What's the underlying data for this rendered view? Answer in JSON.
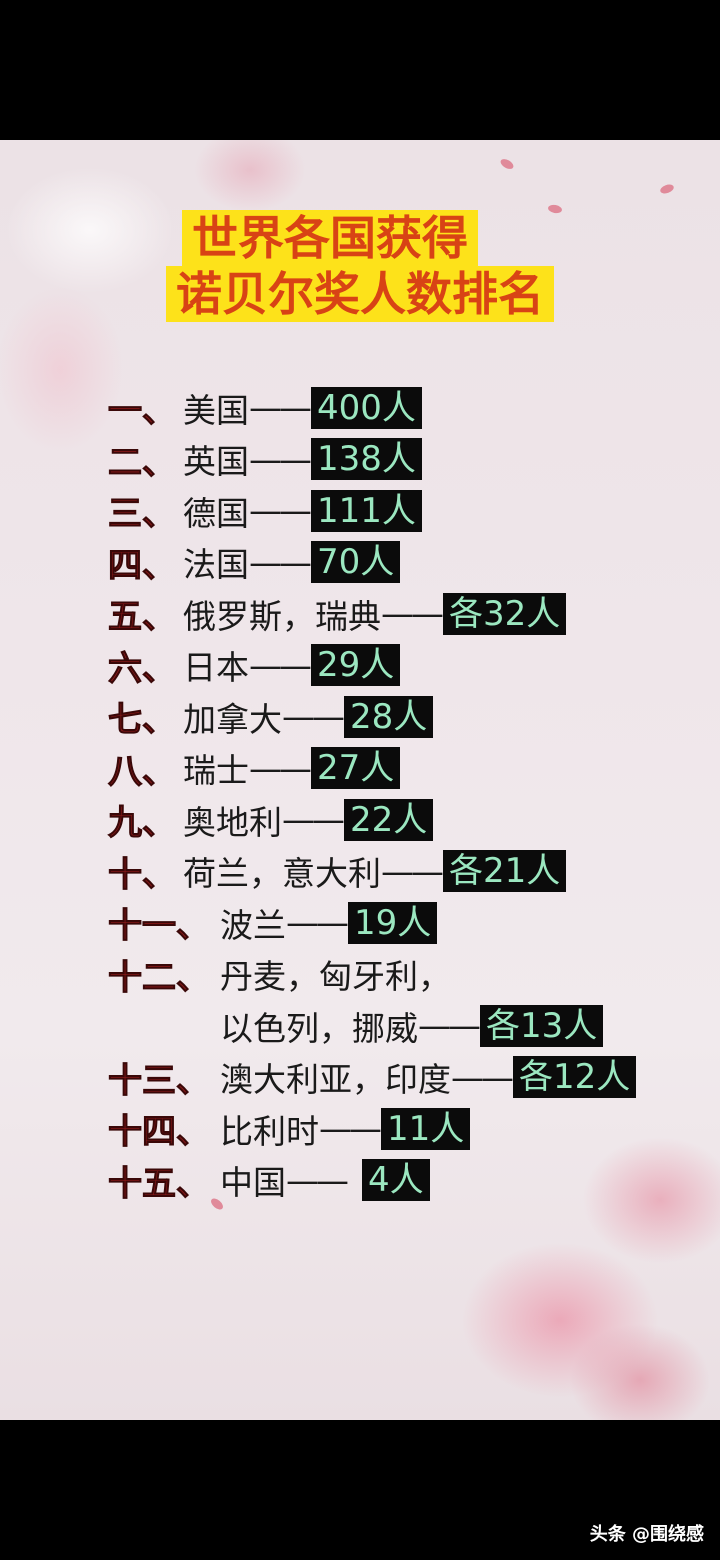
{
  "title": {
    "line1": "世界各国获得",
    "line2": "诺贝尔奖人数排名"
  },
  "ranking": [
    {
      "rank": "一、",
      "country": "美国",
      "dash": "——",
      "value": "400人"
    },
    {
      "rank": "二、",
      "country": "英国",
      "dash": "——",
      "value": "138人"
    },
    {
      "rank": "三、",
      "country": "德国",
      "dash": "——",
      "value": "111人"
    },
    {
      "rank": "四、",
      "country": "法国",
      "dash": "——",
      "value": "70人"
    },
    {
      "rank": "五、",
      "country": "俄罗斯，瑞典",
      "dash": "——",
      "value": "各32人"
    },
    {
      "rank": "六、",
      "country": "日本",
      "dash": "——",
      "value": "29人"
    },
    {
      "rank": "七、",
      "country": "加拿大",
      "dash": "——",
      "value": "28人"
    },
    {
      "rank": "八、",
      "country": "瑞士",
      "dash": "——",
      "value": "27人"
    },
    {
      "rank": "九、",
      "country": "奥地利",
      "dash": "——",
      "value": "22人"
    },
    {
      "rank": "十、",
      "country": "荷兰，意大利",
      "dash": "——",
      "value": "各21人"
    },
    {
      "rank": "十一、",
      "country": "波兰",
      "dash": "——",
      "value": "19人"
    },
    {
      "rank": "十二、",
      "country": "丹麦，匈牙利，",
      "country_line2": "以色列，挪威",
      "dash": "——",
      "value": "各13人"
    },
    {
      "rank": "十三、",
      "country": "澳大利亚，印度",
      "dash": "——",
      "value": "各12人"
    },
    {
      "rank": "十四、",
      "country": "比利时",
      "dash": "——",
      "value": "11人"
    },
    {
      "rank": "十五、",
      "country": "中国",
      "dash": "——",
      "value": "4人"
    }
  ],
  "watermark": "头条 @围绕感",
  "colors": {
    "title_bg": "#fde21a",
    "title_text": "#d84315",
    "rank": "#8e1a1a",
    "value_bg": "#0b0b0b",
    "value_text": "#9be7c0"
  }
}
